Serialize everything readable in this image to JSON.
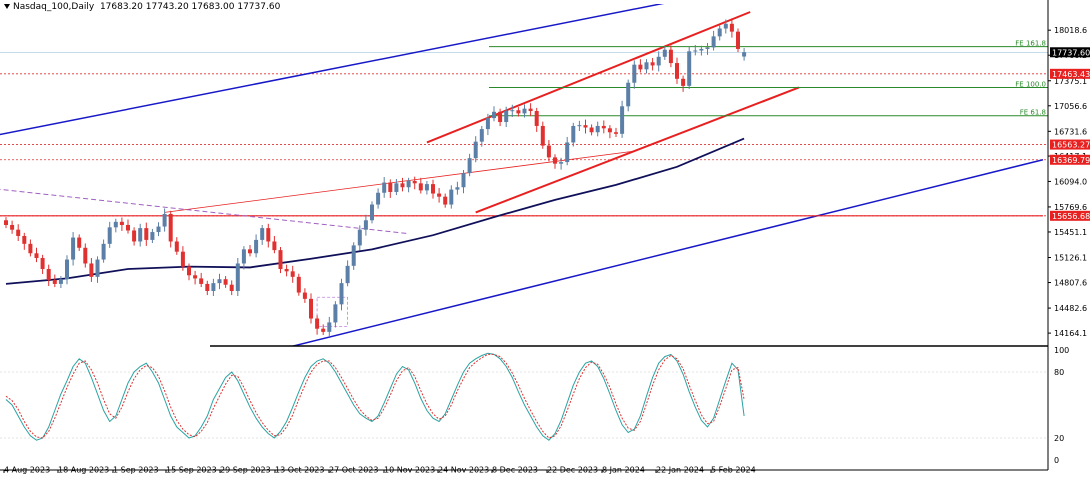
{
  "header": {
    "symbol": "Nasdaq_100,Daily",
    "ohlc": "17683.20 17743.20 17683.00 17737.60"
  },
  "colors": {
    "bull": "#5b7fa6",
    "bear": "#e03030",
    "channel_red": "#e82020",
    "channel_blue": "#1818c8",
    "ma": "#10105a",
    "fib": "#2a8a2a",
    "stoch_main": "#2aa3a3",
    "stoch_signal": "#e03030"
  },
  "chart_data": [
    {
      "type": "candlestick",
      "title": "",
      "xlabel": "",
      "ylabel": "",
      "ylim": [
        14000,
        18250
      ],
      "x_ticks": [
        "4 Aug 2023",
        "18 Aug 2023",
        "1 Sep 2023",
        "15 Sep 2023",
        "29 Sep 2023",
        "13 Oct 2023",
        "27 Oct 2023",
        "10 Nov 2023",
        "24 Nov 2023",
        "8 Dec 2023",
        "22 Dec 2023",
        "8 Jan 2024",
        "22 Jan 2024",
        "5 Feb 2024"
      ],
      "y_ticks": [
        18018.6,
        17700.2,
        17375.1,
        17056.6,
        16731.6,
        16417.1,
        16094.0,
        15769.6,
        15451.1,
        15126.1,
        14807.6,
        14482.6,
        14164.1
      ],
      "close": [
        15540,
        15480,
        15400,
        15300,
        15180,
        15120,
        14980,
        14840,
        14790,
        14850,
        15100,
        15380,
        15250,
        15050,
        14880,
        15100,
        15300,
        15510,
        15580,
        15540,
        15470,
        15330,
        15500,
        15350,
        15450,
        15520,
        15680,
        15330,
        15200,
        15010,
        14900,
        14860,
        14790,
        14700,
        14800,
        14850,
        14780,
        14700,
        15050,
        15230,
        15180,
        15350,
        15500,
        15330,
        15220,
        14980,
        14950,
        14880,
        14680,
        14600,
        14350,
        14220,
        14180,
        14300,
        14530,
        14800,
        15020,
        15280,
        15480,
        15600,
        15800,
        15950,
        16080,
        15960,
        16070,
        16020,
        16100,
        16070,
        15980,
        16060,
        15940,
        15900,
        15800,
        15990,
        16020,
        16200,
        16390,
        16600,
        16760,
        16900,
        16980,
        16850,
        16990,
        17000,
        16960,
        17020,
        16990,
        16800,
        16550,
        16400,
        16320,
        16340,
        16590,
        16800,
        16810,
        16780,
        16720,
        16800,
        16770,
        16720,
        16700,
        17050,
        17350,
        17580,
        17520,
        17610,
        17570,
        17680,
        17770,
        17600,
        17400,
        17310,
        17750,
        17760,
        17780,
        17800,
        17940,
        18040,
        18100,
        18000,
        17780,
        17737.6
      ],
      "open": [
        15600,
        15540,
        15480,
        15400,
        15300,
        15180,
        15120,
        14980,
        14840,
        14790,
        14850,
        15100,
        15380,
        15250,
        15050,
        14880,
        15100,
        15300,
        15510,
        15580,
        15540,
        15470,
        15330,
        15500,
        15350,
        15450,
        15520,
        15680,
        15330,
        15200,
        15010,
        14900,
        14860,
        14790,
        14700,
        14800,
        14850,
        14780,
        14700,
        15050,
        15230,
        15180,
        15350,
        15500,
        15330,
        15220,
        14980,
        14950,
        14880,
        14680,
        14600,
        14350,
        14220,
        14180,
        14300,
        14530,
        14800,
        15020,
        15280,
        15480,
        15600,
        15800,
        15950,
        16080,
        15960,
        16070,
        16020,
        16100,
        16070,
        15980,
        16060,
        15940,
        15900,
        15800,
        15990,
        16020,
        16200,
        16390,
        16600,
        16760,
        16900,
        16980,
        16850,
        16990,
        17000,
        16960,
        17020,
        16990,
        16800,
        16550,
        16400,
        16320,
        16340,
        16590,
        16800,
        16810,
        16780,
        16720,
        16800,
        16770,
        16720,
        16700,
        17050,
        17350,
        17580,
        17520,
        17610,
        17570,
        17680,
        17770,
        17600,
        17400,
        17310,
        17750,
        17760,
        17780,
        17800,
        17940,
        18040,
        18100,
        18000,
        17683.2
      ],
      "price_tags": [
        {
          "value": 17737.6,
          "label": "17737.60",
          "style": "black"
        },
        {
          "value": 17463.43,
          "label": "17463.43",
          "style": "red"
        },
        {
          "value": 16563.27,
          "label": "16563.27",
          "style": "red"
        },
        {
          "value": 16369.79,
          "label": "16369.79",
          "style": "red"
        },
        {
          "value": 15656.68,
          "label": "15656.68",
          "style": "red"
        }
      ],
      "fib_levels": [
        {
          "label": "FE 161.8",
          "value": 17810
        },
        {
          "label": "FE 100.0",
          "value": 17290
        },
        {
          "label": "FE 61.8",
          "value": 16930
        }
      ],
      "ma": [
        [
          0,
          14790
        ],
        [
          10,
          14860
        ],
        [
          20,
          14980
        ],
        [
          30,
          15010
        ],
        [
          40,
          15000
        ],
        [
          50,
          15110
        ],
        [
          60,
          15230
        ],
        [
          70,
          15410
        ],
        [
          80,
          15640
        ],
        [
          90,
          15860
        ],
        [
          100,
          16050
        ],
        [
          110,
          16280
        ],
        [
          121,
          16640
        ]
      ],
      "lines": [
        {
          "name": "blue-upper-channel",
          "color": "channel_blue",
          "width": 1.5,
          "points": [
            [
              -3,
              16660
            ],
            [
              113,
              18440
            ]
          ]
        },
        {
          "name": "blue-lower-channel",
          "color": "channel_blue",
          "width": 1.5,
          "points": [
            [
              44,
              13940
            ],
            [
              170,
              16370
            ]
          ]
        },
        {
          "name": "red-channel-upper",
          "color": "channel_red",
          "width": 2,
          "points": [
            [
              69,
              16590
            ],
            [
              122,
              18250
            ]
          ]
        },
        {
          "name": "red-channel-lower",
          "color": "channel_red",
          "width": 2,
          "points": [
            [
              77,
              15700
            ],
            [
              130,
              17290
            ]
          ]
        },
        {
          "name": "red-thin-trend",
          "color": "channel_red",
          "width": 0.8,
          "points": [
            [
              26,
              15700
            ],
            [
              103,
              16480
            ]
          ]
        },
        {
          "name": "red-horizontal",
          "color": "channel_red",
          "width": 1.2,
          "points": [
            [
              -3,
              15656.68
            ],
            [
              170,
              15656.68
            ]
          ]
        },
        {
          "name": "purple-dashed-trend",
          "color": "#a060c0",
          "width": 1,
          "dash": "5,3",
          "points": [
            [
              -3,
              16010
            ],
            [
              66,
              15430
            ]
          ]
        }
      ]
    },
    {
      "type": "line",
      "title": "",
      "xlabel": "",
      "ylabel": "",
      "ylim": [
        0,
        100
      ],
      "y_ticks": [
        100,
        80,
        20,
        0
      ],
      "series": [
        {
          "key": "stoch_main",
          "values": [
            55,
            50,
            40,
            30,
            22,
            18,
            20,
            30,
            45,
            60,
            72,
            85,
            92,
            88,
            75,
            60,
            45,
            35,
            40,
            55,
            70,
            80,
            85,
            88,
            80,
            70,
            55,
            40,
            30,
            25,
            20,
            22,
            30,
            40,
            55,
            65,
            75,
            80,
            72,
            60,
            48,
            38,
            30,
            24,
            20,
            26,
            35,
            48,
            62,
            75,
            85,
            90,
            92,
            88,
            80,
            70,
            60,
            50,
            42,
            38,
            35,
            40,
            52,
            65,
            78,
            85,
            82,
            70,
            56,
            45,
            38,
            35,
            42,
            55,
            68,
            80,
            88,
            92,
            95,
            97,
            96,
            92,
            85,
            75,
            62,
            50,
            40,
            30,
            22,
            18,
            24,
            36,
            52,
            68,
            80,
            88,
            90,
            85,
            74,
            60,
            45,
            32,
            25,
            28,
            40,
            58,
            75,
            88,
            94,
            96,
            90,
            78,
            62,
            48,
            36,
            30,
            38,
            55,
            72,
            88,
            82,
            40
          ]
        },
        {
          "key": "stoch_signal",
          "values": [
            58,
            54,
            46,
            35,
            26,
            21,
            20,
            26,
            38,
            52,
            66,
            78,
            88,
            90,
            82,
            70,
            55,
            42,
            38,
            48,
            62,
            74,
            82,
            86,
            84,
            76,
            63,
            48,
            36,
            28,
            23,
            21,
            26,
            34,
            47,
            58,
            69,
            77,
            76,
            66,
            54,
            43,
            34,
            27,
            22,
            23,
            30,
            41,
            55,
            68,
            80,
            87,
            90,
            90,
            84,
            75,
            65,
            55,
            46,
            40,
            36,
            38,
            47,
            59,
            72,
            81,
            84,
            76,
            63,
            51,
            42,
            37,
            40,
            50,
            63,
            74,
            84,
            89,
            93,
            96,
            96,
            94,
            88,
            79,
            68,
            56,
            45,
            35,
            26,
            20,
            22,
            31,
            45,
            60,
            74,
            84,
            89,
            87,
            78,
            66,
            51,
            38,
            29,
            27,
            35,
            51,
            68,
            82,
            91,
            95,
            92,
            83,
            68,
            54,
            41,
            33,
            35,
            49,
            65,
            82,
            84,
            55
          ]
        }
      ]
    }
  ]
}
